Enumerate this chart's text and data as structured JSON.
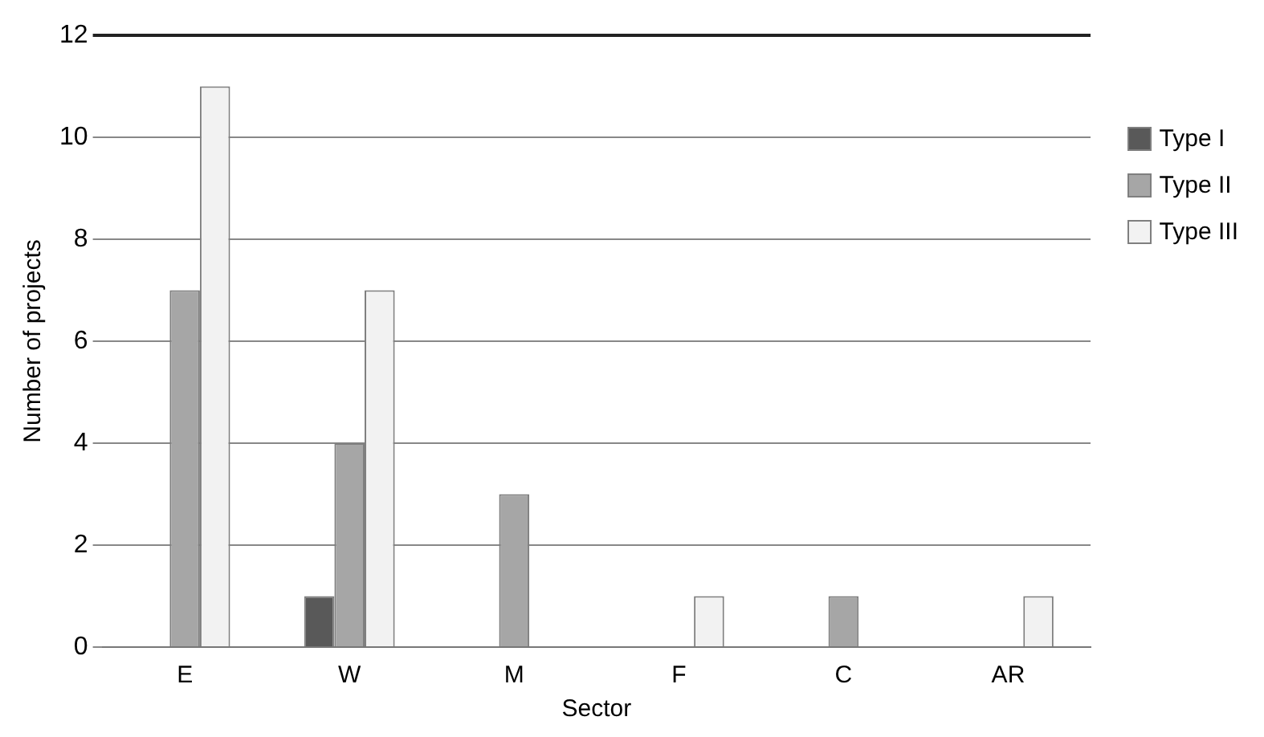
{
  "chart_data": {
    "type": "bar",
    "xlabel": "Sector",
    "ylabel": "Number of projects",
    "categories": [
      "E",
      "W",
      "M",
      "F",
      "C",
      "AR"
    ],
    "series": [
      {
        "name": "Type I",
        "color": "#595959",
        "values": [
          0,
          1,
          0,
          0,
          0,
          0
        ]
      },
      {
        "name": "Type II",
        "color": "#a6a6a6",
        "values": [
          7,
          4,
          3,
          0,
          1,
          0
        ]
      },
      {
        "name": "Type III",
        "color": "#f2f2f2",
        "values": [
          11,
          7,
          0,
          1,
          0,
          1
        ]
      }
    ],
    "ylim": [
      0,
      12
    ],
    "yticks": [
      0,
      2,
      4,
      6,
      8,
      10,
      12
    ],
    "grid": "y",
    "legend": "top right"
  }
}
